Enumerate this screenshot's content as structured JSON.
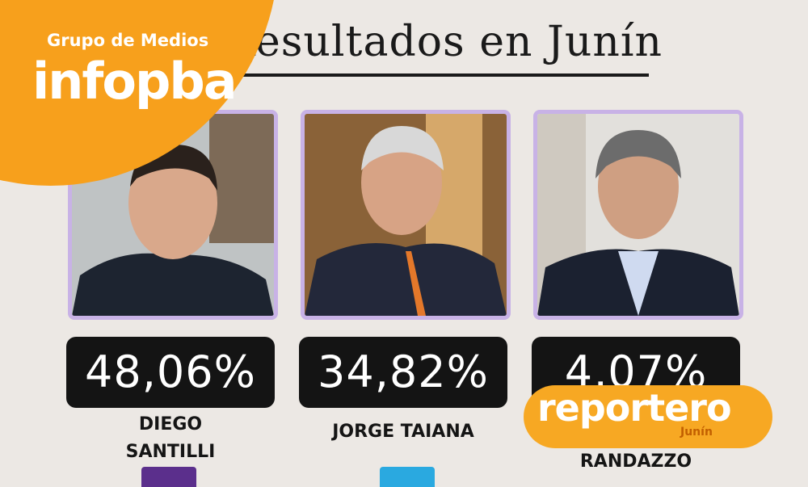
{
  "title": "Resultados en Junín",
  "brand": {
    "group": "Grupo de Medios",
    "name": "infopba"
  },
  "candidates": [
    {
      "percentage": "48,06%",
      "name": "DIEGO SANTILLI"
    },
    {
      "percentage": "34,82%",
      "name": "JORGE TAIANA"
    },
    {
      "percentage": "4,07%",
      "name": "RANDAZZO"
    }
  ],
  "watermark": {
    "name": "reportero",
    "city": "Junín"
  }
}
